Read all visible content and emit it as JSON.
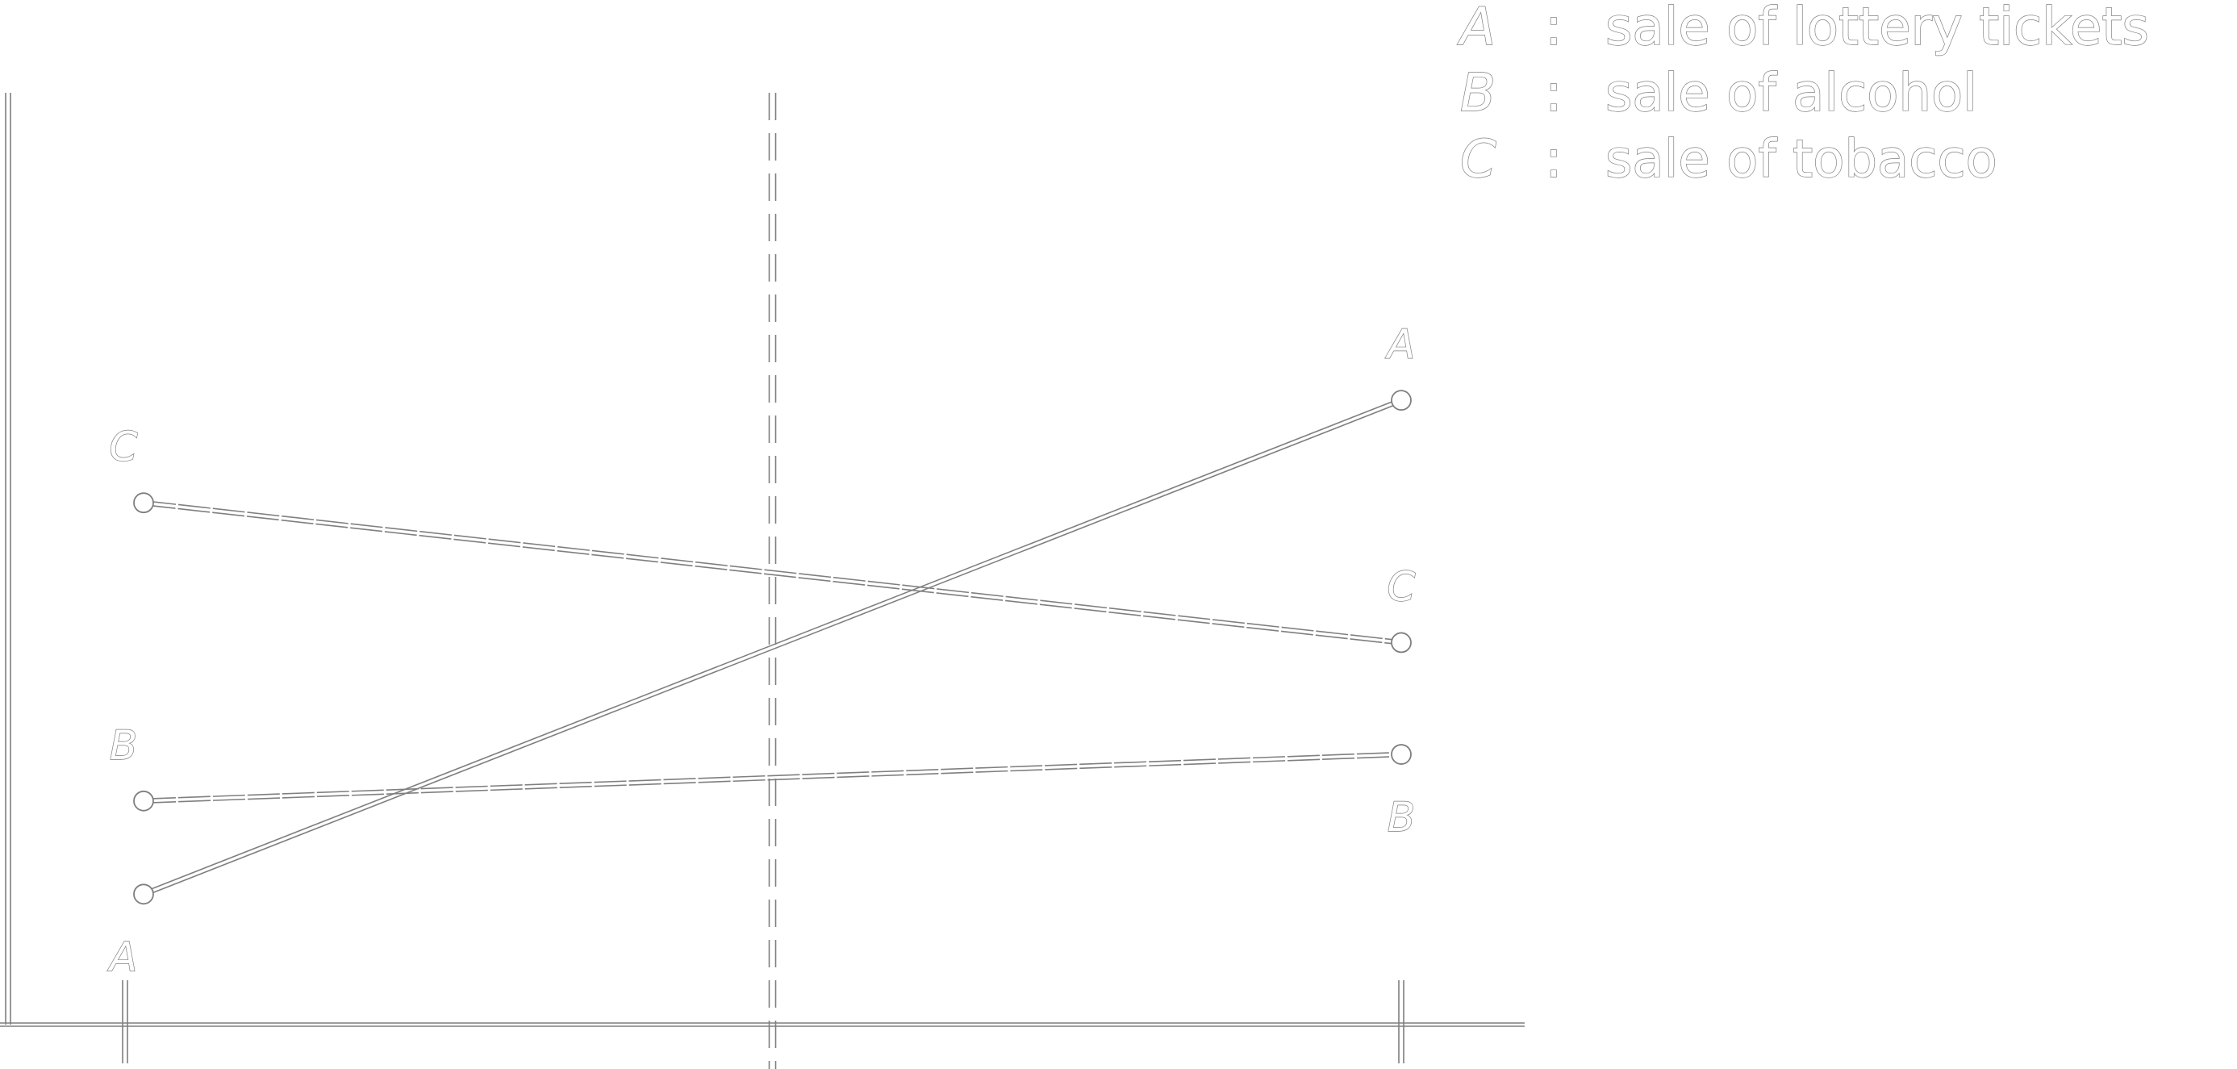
{
  "chart_data": {
    "type": "line",
    "title": "",
    "xlabel": "",
    "ylabel": "",
    "categories": [
      "",
      ""
    ],
    "series": [
      {
        "id": "A",
        "name": "sale of lottery tickets",
        "values": [
          0.14,
          0.67
        ],
        "label": "A",
        "label_start": "A",
        "label_end": "A"
      },
      {
        "id": "B",
        "name": "sale of alcohol",
        "values": [
          0.24,
          0.29
        ],
        "label": "B",
        "label_start": "B",
        "label_end": "B"
      },
      {
        "id": "C",
        "name": "sale of tobacco",
        "values": [
          0.56,
          0.41
        ],
        "label": "C",
        "label_start": "C",
        "label_end": "C"
      }
    ],
    "legend": [
      {
        "key": "A",
        "sep": ":",
        "text": "sale of lottery tickets"
      },
      {
        "key": "B",
        "sep": ":",
        "text": "sale of alcohol"
      },
      {
        "key": "C",
        "sep": ":",
        "text": "sale of tobacco"
      }
    ],
    "legend_position": "top-right",
    "vertical_reference_line": "dashed, midway between categories",
    "line_color": "#7f7f7f",
    "background": "#ffffff",
    "grid": false
  }
}
